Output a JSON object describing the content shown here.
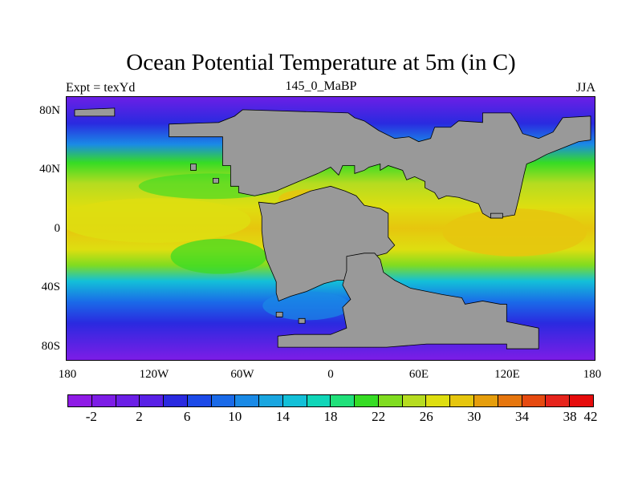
{
  "header": {
    "title": "Ocean Potential Temperature at 5m (in C)",
    "left_label": "Expt = texYd",
    "center_label": "145_0_MaBP",
    "right_label": "JJA"
  },
  "map": {
    "projection": "cylindrical-equidistant",
    "lon_range": [
      -180,
      180
    ],
    "lat_range": [
      -90,
      90
    ],
    "land_color": "#999999",
    "y_ticks": [
      {
        "label": "80N",
        "lat": 80
      },
      {
        "label": "40N",
        "lat": 40
      },
      {
        "label": "0",
        "lat": 0
      },
      {
        "label": "40S",
        "lat": -40
      },
      {
        "label": "80S",
        "lat": -80
      }
    ],
    "x_ticks": [
      {
        "label": "180",
        "lon": -180
      },
      {
        "label": "120W",
        "lon": -120
      },
      {
        "label": "60W",
        "lon": -60
      },
      {
        "label": "0",
        "lon": 0
      },
      {
        "label": "60E",
        "lon": 60
      },
      {
        "label": "120E",
        "lon": 120
      },
      {
        "label": "180",
        "lon": 180
      }
    ]
  },
  "colorbar": {
    "colors": [
      "#8f1be6",
      "#7d1de6",
      "#6b1fe6",
      "#5921e6",
      "#2a2ae0",
      "#1c4ae8",
      "#1a6ae8",
      "#1a8ae6",
      "#1aa6e0",
      "#13c0d8",
      "#10d6b8",
      "#20e07a",
      "#36dc24",
      "#80dc20",
      "#b6dc20",
      "#dede10",
      "#e6c60e",
      "#e69e0c",
      "#e6760e",
      "#e64a10",
      "#e6241c",
      "#e60c0c"
    ],
    "labels": [
      {
        "text": "-2",
        "index": 1
      },
      {
        "text": "2",
        "index": 3
      },
      {
        "text": "6",
        "index": 5
      },
      {
        "text": "10",
        "index": 7
      },
      {
        "text": "14",
        "index": 9
      },
      {
        "text": "18",
        "index": 11
      },
      {
        "text": "22",
        "index": 13
      },
      {
        "text": "26",
        "index": 15
      },
      {
        "text": "30",
        "index": 17
      },
      {
        "text": "34",
        "index": 19
      },
      {
        "text": "38",
        "index": 21
      },
      {
        "text": "42",
        "index": 23
      }
    ]
  }
}
